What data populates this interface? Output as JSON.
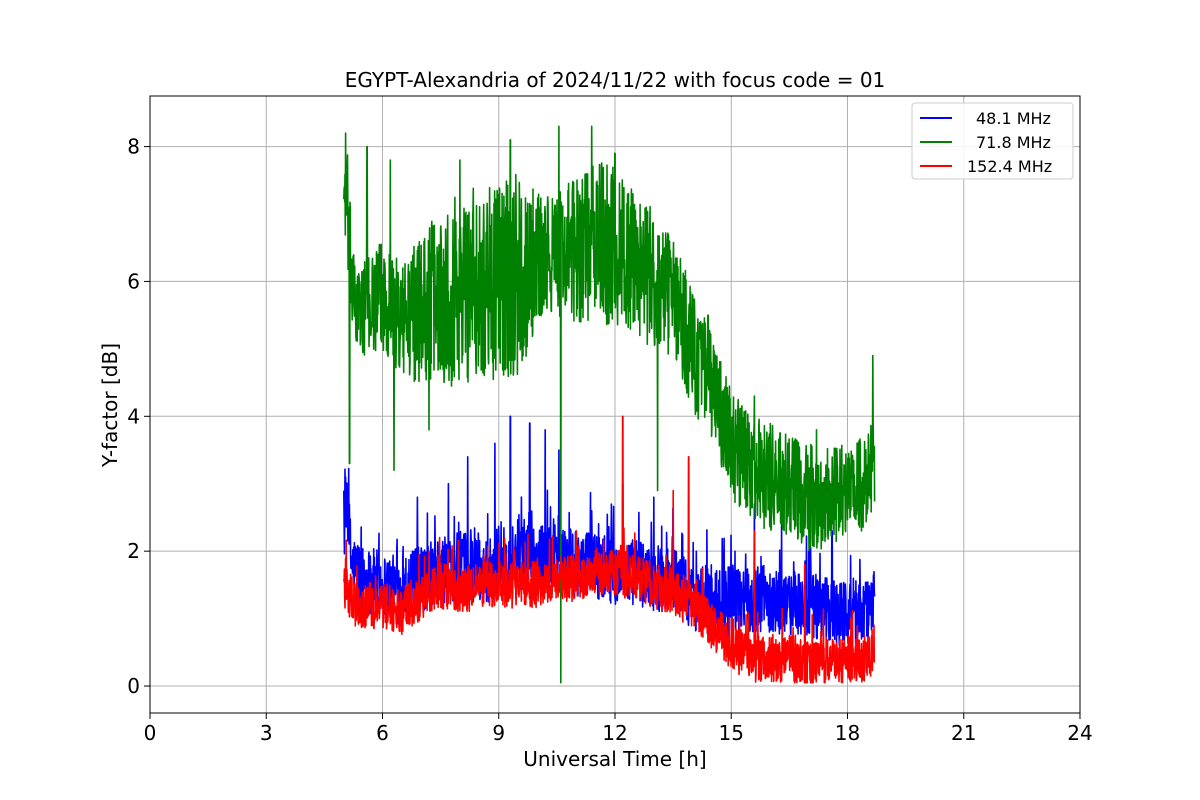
{
  "chart_data": {
    "type": "line",
    "title": "EGYPT-Alexandria of 2024/11/22 with focus code = 01",
    "xlabel": "Universal Time [h]",
    "ylabel": "Y-factor [dB]",
    "xlim": [
      0,
      24
    ],
    "ylim": [
      -0.4,
      8.75
    ],
    "xticks": [
      0,
      3,
      6,
      9,
      12,
      15,
      18,
      21,
      24
    ],
    "xtick_labels": [
      "0",
      "3",
      "6",
      "9",
      "12",
      "15",
      "18",
      "21",
      "24"
    ],
    "yticks": [
      0,
      2,
      4,
      6,
      8
    ],
    "ytick_labels": [
      "0",
      "2",
      "4",
      "6",
      "8"
    ],
    "grid": true,
    "legend_position": "top-right",
    "series": [
      {
        "name": "48.1 MHz",
        "color": "#0000ff",
        "x": [
          5.0,
          5.1,
          5.2,
          5.5,
          6.0,
          6.5,
          7.0,
          7.5,
          8.0,
          8.5,
          9.0,
          9.5,
          10.0,
          10.5,
          11.0,
          11.5,
          12.0,
          12.5,
          13.0,
          13.5,
          14.0,
          14.5,
          15.0,
          15.5,
          16.0,
          16.5,
          17.0,
          17.5,
          18.0,
          18.5,
          18.7
        ],
        "y": [
          2.3,
          2.6,
          1.8,
          1.6,
          1.5,
          1.4,
          1.6,
          1.7,
          1.8,
          1.7,
          1.8,
          2.0,
          1.9,
          1.9,
          1.8,
          1.8,
          1.7,
          1.7,
          1.6,
          1.6,
          1.3,
          1.3,
          1.2,
          1.3,
          1.3,
          1.2,
          1.2,
          1.1,
          1.1,
          1.1,
          1.3
        ],
        "spike_x": [
          5.05,
          6.9,
          7.7,
          8.2,
          8.9,
          9.3,
          9.8,
          10.2,
          10.55,
          11.4,
          12.2,
          13.0,
          14.1,
          15.1,
          15.6,
          16.3,
          17.0,
          17.6
        ],
        "spike_y": [
          3.1,
          2.8,
          3.0,
          3.4,
          3.6,
          4.0,
          3.9,
          3.8,
          3.5,
          2.6,
          3.0,
          2.8,
          2.0,
          2.0,
          2.7,
          2.4,
          2.0,
          2.3
        ]
      },
      {
        "name": "71.8 MHz",
        "color": "#008000",
        "x": [
          5.0,
          5.1,
          5.2,
          5.3,
          5.5,
          6.0,
          6.5,
          7.0,
          7.5,
          8.0,
          8.5,
          9.0,
          9.5,
          10.0,
          10.5,
          11.0,
          11.5,
          12.0,
          12.5,
          13.0,
          13.5,
          14.0,
          14.5,
          15.0,
          15.5,
          16.0,
          16.5,
          17.0,
          17.5,
          18.0,
          18.5,
          18.7
        ],
        "y": [
          7.4,
          7.0,
          6.0,
          5.6,
          5.6,
          5.8,
          5.4,
          5.6,
          5.8,
          5.9,
          6.0,
          6.0,
          6.1,
          6.3,
          6.4,
          6.5,
          6.6,
          6.5,
          6.3,
          6.0,
          5.8,
          5.0,
          4.4,
          3.6,
          3.2,
          3.1,
          2.9,
          2.8,
          2.8,
          2.9,
          3.0,
          3.3
        ],
        "amplitude": [
          0.5,
          0.9,
          0.8,
          0.6,
          0.7,
          0.8,
          0.9,
          1.1,
          1.3,
          1.5,
          1.4,
          1.5,
          1.5,
          1.0,
          0.9,
          1.1,
          1.2,
          1.2,
          1.1,
          1.1,
          0.9,
          0.9,
          0.8,
          0.8,
          0.8,
          0.8,
          0.8,
          0.8,
          0.8,
          0.7,
          0.7,
          0.8
        ],
        "spike_x": [
          5.05,
          5.6,
          6.2,
          7.2,
          8.0,
          9.3,
          10.55,
          11.4,
          12.0,
          13.4,
          14.4,
          15.6,
          17.2,
          18.65
        ],
        "spike_y": [
          8.2,
          8.0,
          7.8,
          7.6,
          7.8,
          8.1,
          8.3,
          8.3,
          7.9,
          6.6,
          5.5,
          4.3,
          3.8,
          4.9
        ],
        "dip_x": [
          5.15,
          6.3,
          7.2,
          10.6,
          13.1
        ],
        "dip_y": [
          3.3,
          3.2,
          3.8,
          0.0,
          2.9
        ]
      },
      {
        "name": "152.4 MHz",
        "color": "#ff0000",
        "x": [
          5.0,
          5.1,
          5.3,
          5.5,
          6.0,
          6.5,
          7.0,
          7.5,
          8.0,
          8.5,
          9.0,
          9.5,
          10.0,
          10.5,
          11.0,
          11.5,
          12.0,
          12.5,
          13.0,
          13.5,
          14.0,
          14.5,
          15.0,
          15.5,
          16.0,
          16.5,
          17.0,
          17.5,
          18.0,
          18.5,
          18.7
        ],
        "y": [
          1.5,
          1.4,
          1.2,
          1.2,
          1.2,
          1.1,
          1.3,
          1.5,
          1.4,
          1.5,
          1.5,
          1.5,
          1.5,
          1.6,
          1.6,
          1.7,
          1.7,
          1.6,
          1.5,
          1.4,
          1.2,
          0.9,
          0.6,
          0.4,
          0.4,
          0.4,
          0.3,
          0.4,
          0.4,
          0.4,
          0.6
        ],
        "spike_x": [
          5.05,
          7.2,
          9.4,
          11.0,
          12.2,
          13.5,
          13.9,
          15.6,
          16.9
        ],
        "spike_y": [
          1.9,
          2.0,
          2.0,
          2.3,
          4.0,
          2.9,
          3.4,
          2.3,
          1.8
        ]
      }
    ]
  }
}
